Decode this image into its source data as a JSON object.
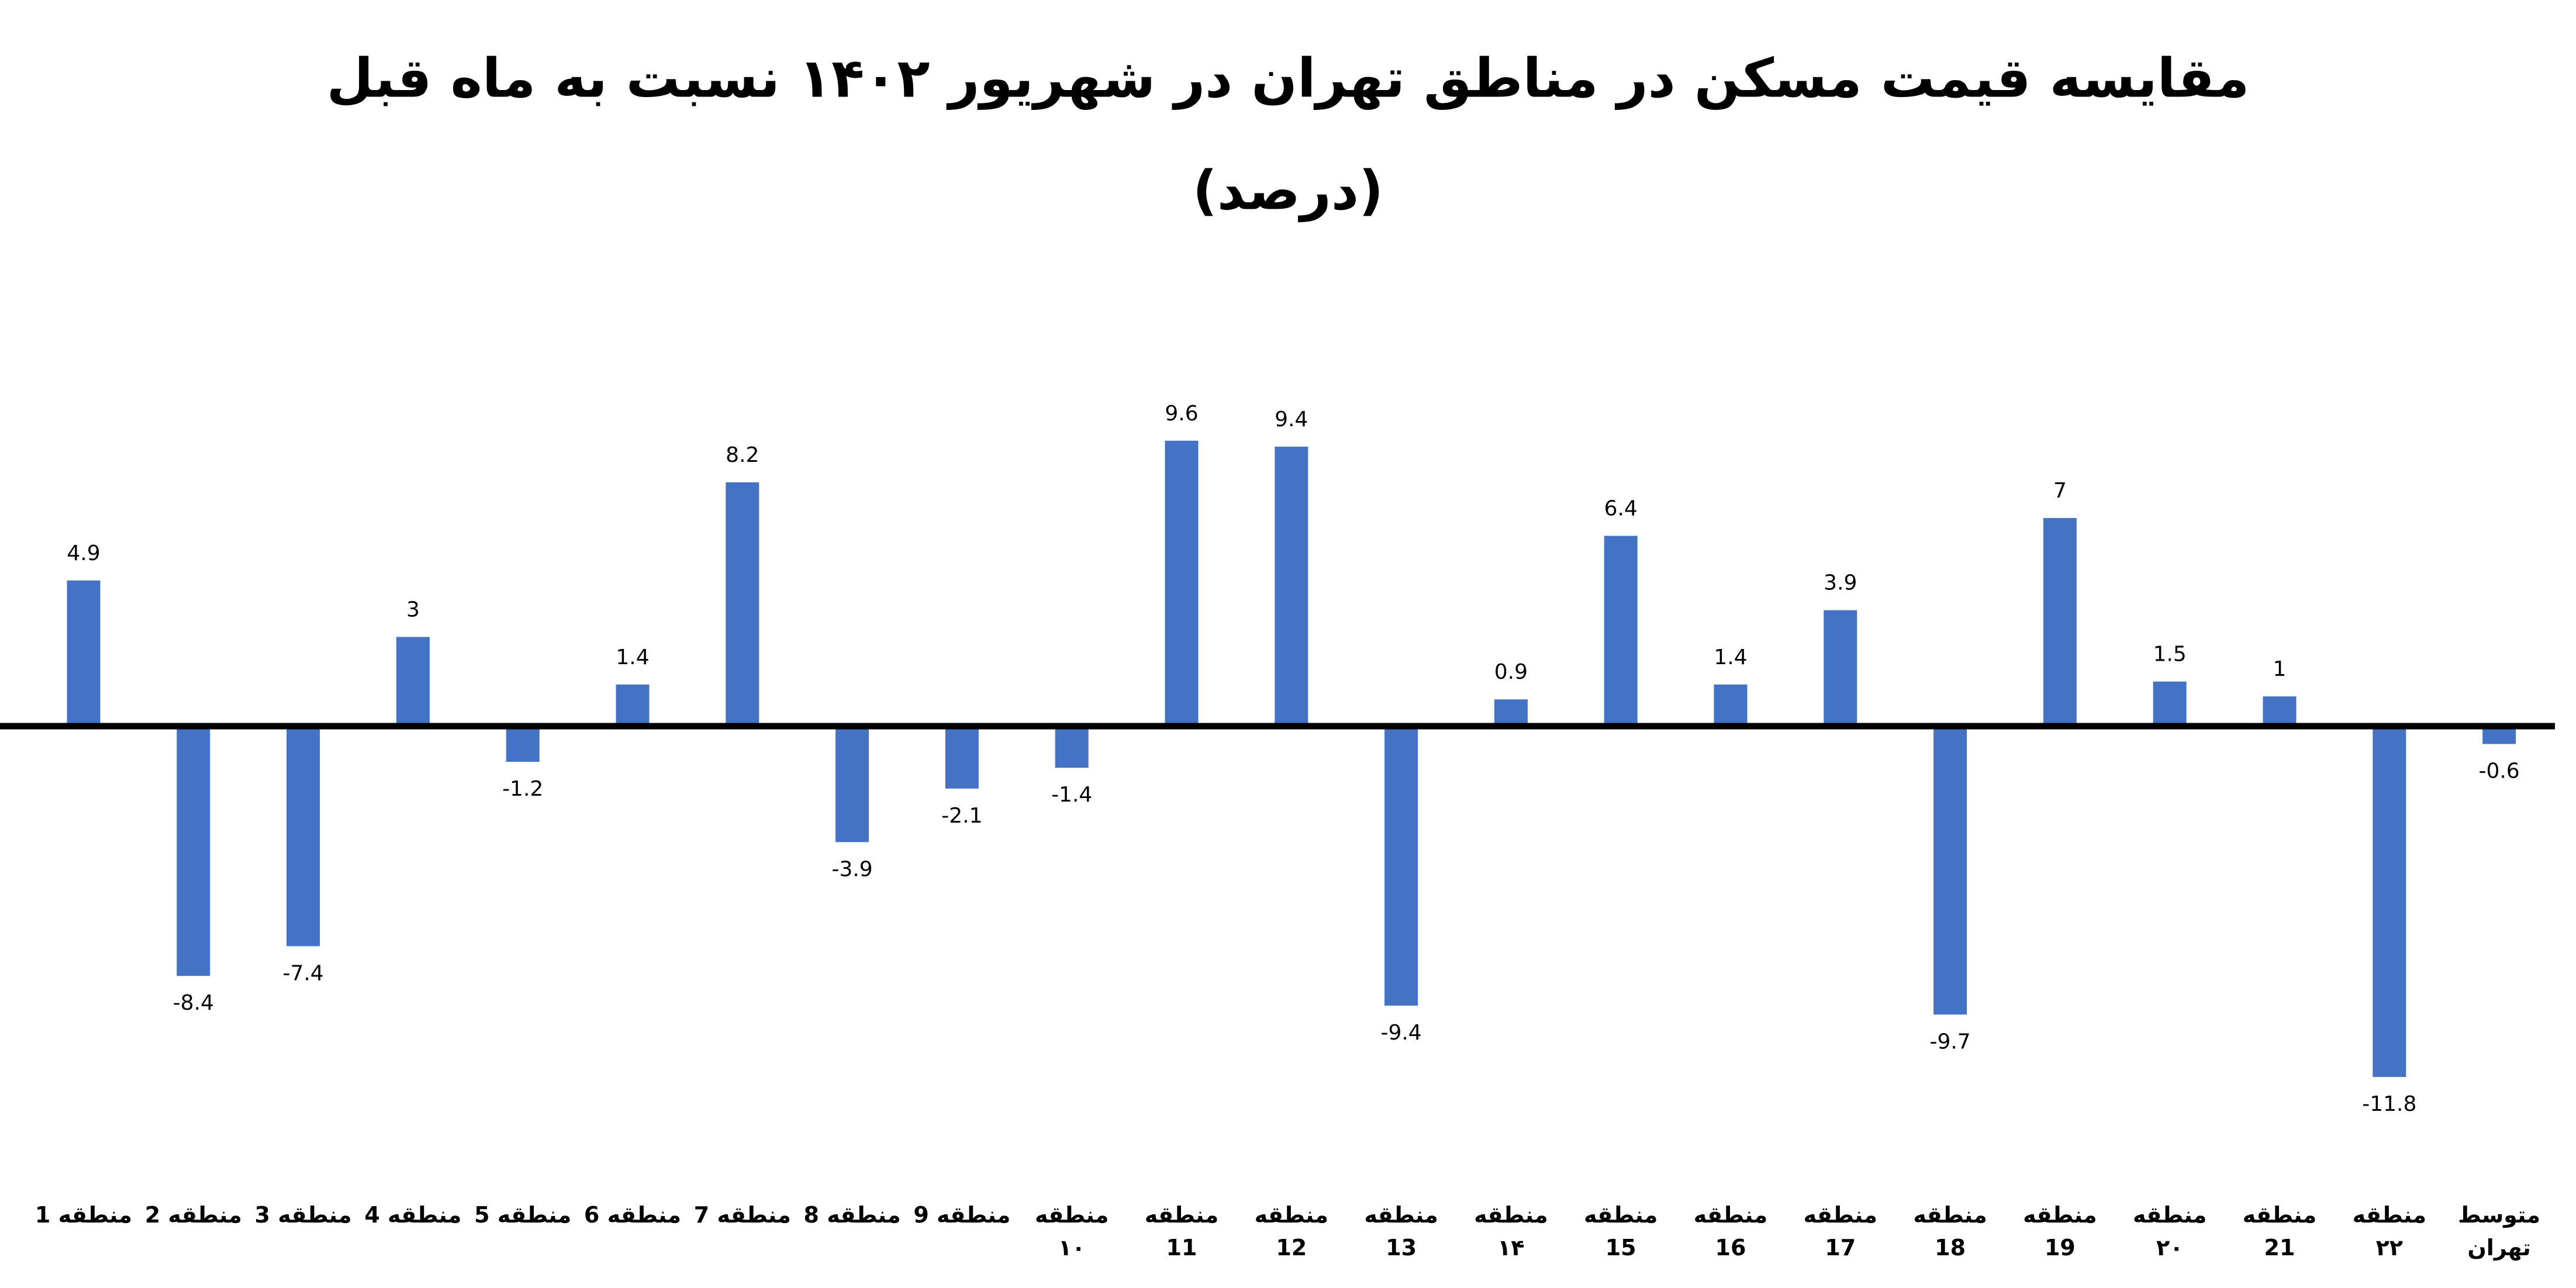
{
  "chart_data": {
    "type": "bar",
    "title": "مقایسه قیمت مسکن در مناطق تهران در شهریور ۱۴۰۲ نسبت به ماه قبل",
    "subtitle": "(درصد)",
    "categories": [
      "منطقه 1",
      "منطقه 2",
      "منطقه 3",
      "منطقه 4",
      "منطقه 5",
      "منطقه 6",
      "منطقه 7",
      "منطقه 8",
      "منطقه 9",
      "منطقه ۱۰",
      "منطقه 11",
      "منطقه 12",
      "منطقه 13",
      "منطقه ۱۴",
      "منطقه 15",
      "منطقه 16",
      "منطقه 17",
      "منطقه 18",
      "منطقه 19",
      "منطقه ۲۰",
      "منطقه 21",
      "منطقه ۲۲",
      "متوسط تهران"
    ],
    "values": [
      4.9,
      -8.4,
      -7.4,
      3,
      -1.2,
      1.4,
      8.2,
      -3.9,
      -2.1,
      -1.4,
      9.6,
      9.4,
      -9.4,
      0.9,
      6.4,
      1.4,
      3.9,
      -9.7,
      7,
      1.5,
      1,
      -11.8,
      -0.6
    ],
    "color": "#4472c4",
    "ylim": [
      -14,
      14
    ]
  }
}
